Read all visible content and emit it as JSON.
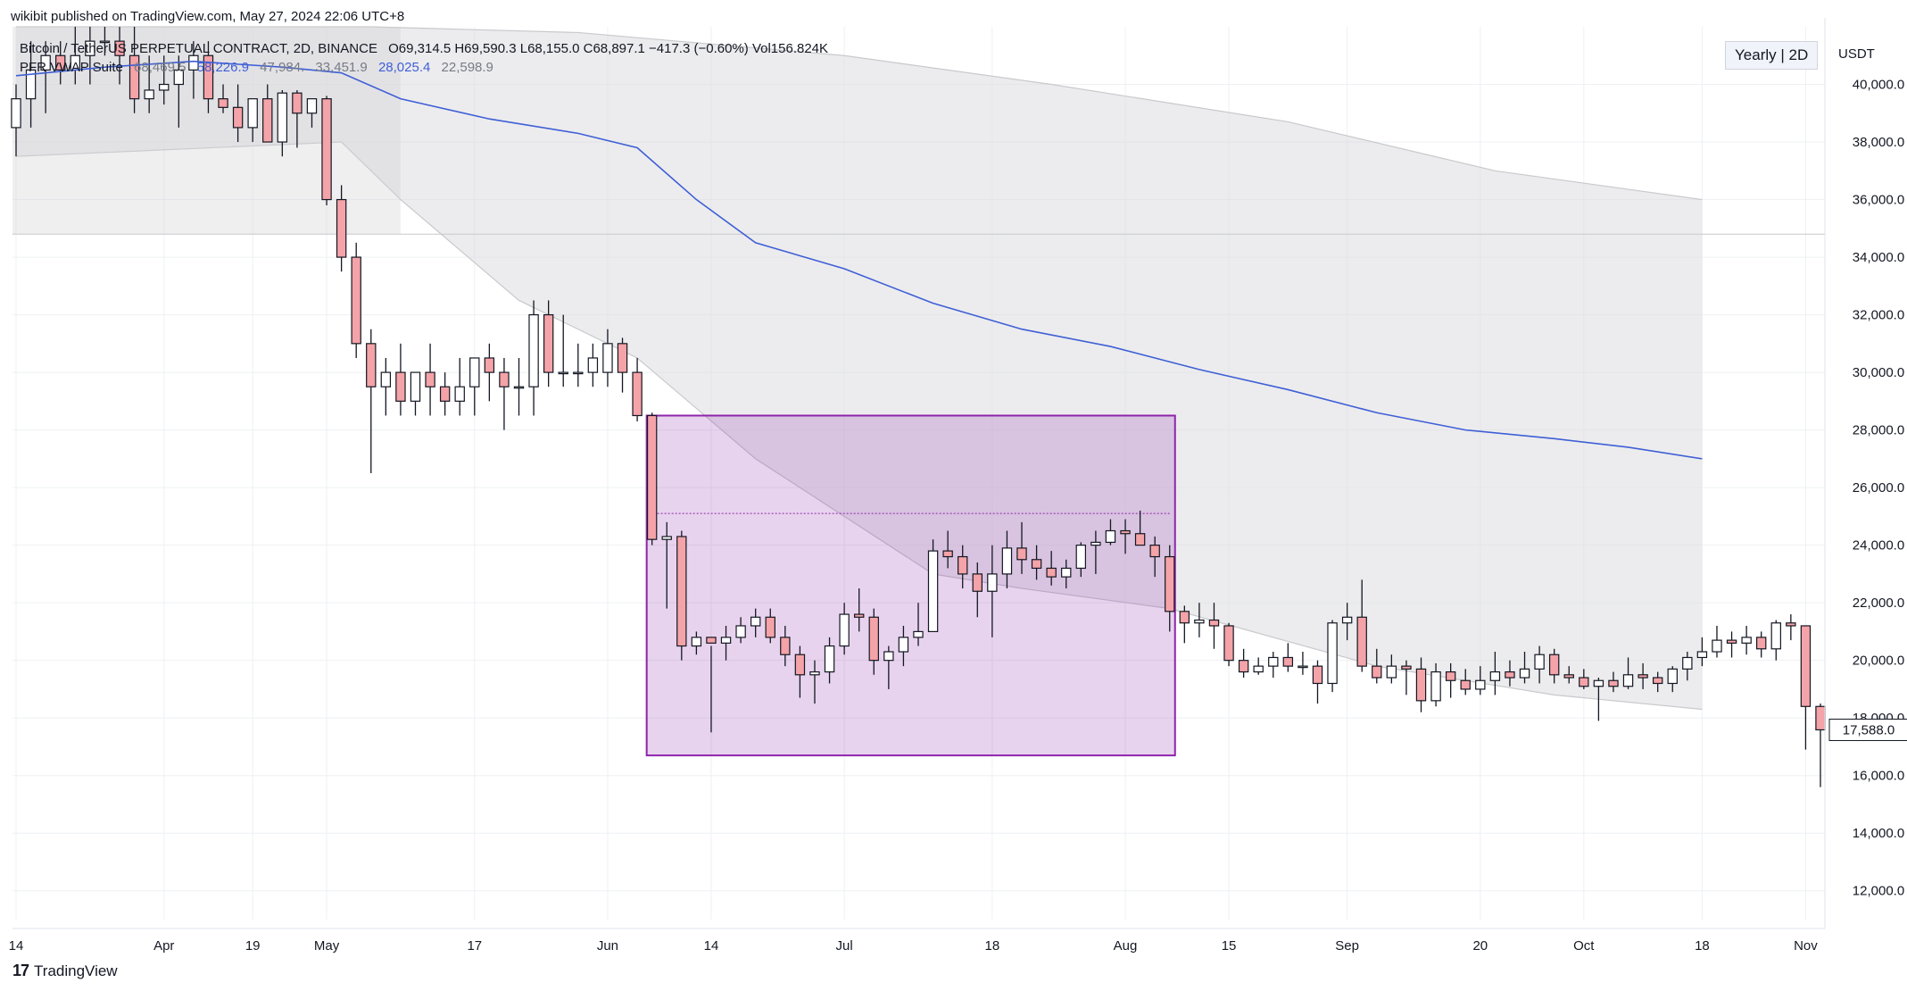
{
  "header": {
    "published": "wikibit published on TradingView.com, May 27, 2024 22:06 UTC+8",
    "symbol": "Bitcoin / TetherUS PERPETUAL CONTRACT, 2D, BINANCE",
    "ohlc": "O69,314.5  H69,590.3  L68,155.0  C68,897.1  −417.3 (−0.60%)  Vol156.824K",
    "indicator_name": "PFR VWAP Suite",
    "indicator_values": [
      "68,469.5",
      "58,226.9",
      "47,984.",
      "33,451.9",
      "28,025.4",
      "22,598.9"
    ]
  },
  "controls": {
    "range_button": "Yearly | 2D",
    "currency": "USDT"
  },
  "watermark": {
    "logo": "17",
    "text": "TradingView"
  },
  "colors": {
    "up": "#ffffff",
    "down": "#f4a3a8",
    "vwap": "#3f5fd6",
    "box": "#8e24aa",
    "band": "#d8d9dc"
  },
  "chart_data": {
    "type": "candlestick",
    "y_axis": {
      "min": 11000,
      "max": 42000,
      "ticks": [
        "12,000.0",
        "14,000.0",
        "16,000.0",
        "18,000.0",
        "20,000.0",
        "22,000.0",
        "24,000.0",
        "26,000.0",
        "28,000.0",
        "30,000.0",
        "32,000.0",
        "34,000.0",
        "36,000.0",
        "38,000.0",
        "40,000.0"
      ]
    },
    "x_labels": [
      "14",
      "Apr",
      "19",
      "May",
      "17",
      "Jun",
      "14",
      "Jul",
      "18",
      "Aug",
      "15",
      "Sep",
      "20",
      "Oct",
      "18",
      "Nov"
    ],
    "last_price_label": "17,588.0",
    "candles": [
      [
        38500,
        40000,
        37500,
        39500
      ],
      [
        39500,
        41500,
        38500,
        40500
      ],
      [
        40500,
        41500,
        39000,
        41000
      ],
      [
        41000,
        41500,
        40000,
        40500
      ],
      [
        40500,
        42000,
        40000,
        41000
      ],
      [
        41000,
        42000,
        40000,
        41500
      ],
      [
        41500,
        42000,
        41000,
        41500
      ],
      [
        41500,
        42000,
        40000,
        41000
      ],
      [
        41000,
        42000,
        39000,
        39500
      ],
      [
        39500,
        41000,
        39000,
        39800
      ],
      [
        39800,
        41000,
        39300,
        40000
      ],
      [
        40000,
        41000,
        38500,
        40500
      ],
      [
        40500,
        41500,
        39500,
        41000
      ],
      [
        41000,
        41500,
        39000,
        39500
      ],
      [
        39500,
        40000,
        39000,
        39200
      ],
      [
        39200,
        40000,
        38000,
        38500
      ],
      [
        38500,
        39500,
        38000,
        39500
      ],
      [
        39500,
        40000,
        38000,
        38000
      ],
      [
        38000,
        39800,
        37500,
        39700
      ],
      [
        39700,
        39800,
        37800,
        39000
      ],
      [
        39000,
        39500,
        38500,
        39500
      ],
      [
        39500,
        39600,
        35800,
        36000
      ],
      [
        36000,
        36500,
        33500,
        34000
      ],
      [
        34000,
        34500,
        30500,
        31000
      ],
      [
        31000,
        31500,
        26500,
        29500
      ],
      [
        29500,
        30500,
        28500,
        30000
      ],
      [
        30000,
        31000,
        28500,
        29000
      ],
      [
        29000,
        30000,
        28500,
        30000
      ],
      [
        30000,
        31000,
        28500,
        29500
      ],
      [
        29500,
        30000,
        28500,
        29000
      ],
      [
        29000,
        30500,
        28500,
        29500
      ],
      [
        29500,
        30500,
        28500,
        30500
      ],
      [
        30500,
        31000,
        29000,
        30000
      ],
      [
        30000,
        30500,
        28000,
        29500
      ],
      [
        29500,
        30500,
        28500,
        29500
      ],
      [
        29500,
        32500,
        28500,
        32000
      ],
      [
        32000,
        32500,
        29500,
        30000
      ],
      [
        30000,
        32000,
        29500,
        30000
      ],
      [
        30000,
        31000,
        29500,
        30000
      ],
      [
        30000,
        31000,
        29500,
        30500
      ],
      [
        30000,
        31500,
        29500,
        31000
      ],
      [
        31000,
        31200,
        29300,
        30000
      ],
      [
        30000,
        30500,
        28300,
        28500
      ],
      [
        28500,
        28600,
        24000,
        24200
      ],
      [
        24200,
        24800,
        21800,
        24300
      ],
      [
        24300,
        24500,
        20000,
        20500
      ],
      [
        20500,
        21000,
        20200,
        20800
      ],
      [
        20800,
        20500,
        17500,
        20600
      ],
      [
        20600,
        21200,
        20000,
        20800
      ],
      [
        20800,
        21500,
        20600,
        21200
      ],
      [
        21200,
        21800,
        20800,
        21500
      ],
      [
        21500,
        21800,
        20600,
        20800
      ],
      [
        20800,
        21200,
        19800,
        20200
      ],
      [
        20200,
        20500,
        18700,
        19500
      ],
      [
        19500,
        20000,
        18500,
        19600
      ],
      [
        19600,
        20800,
        19200,
        20500
      ],
      [
        20500,
        22000,
        20200,
        21600
      ],
      [
        21600,
        22500,
        21000,
        21500
      ],
      [
        21500,
        21800,
        19500,
        20000
      ],
      [
        20000,
        20500,
        19000,
        20300
      ],
      [
        20300,
        21200,
        19800,
        20800
      ],
      [
        20800,
        22000,
        20500,
        21000
      ],
      [
        21000,
        24200,
        21000,
        23800
      ],
      [
        23800,
        24500,
        23200,
        23600
      ],
      [
        23600,
        24000,
        22500,
        23000
      ],
      [
        23000,
        23400,
        21500,
        22400
      ],
      [
        22400,
        24000,
        20800,
        23000
      ],
      [
        23000,
        24500,
        22500,
        23900
      ],
      [
        23900,
        24800,
        23000,
        23500
      ],
      [
        23500,
        24000,
        22800,
        23200
      ],
      [
        23200,
        23800,
        22600,
        22900
      ],
      [
        22900,
        23500,
        22500,
        23200
      ],
      [
        23200,
        24100,
        22900,
        24000
      ],
      [
        24000,
        24500,
        23000,
        24100
      ],
      [
        24100,
        24900,
        24000,
        24500
      ],
      [
        24500,
        24900,
        23700,
        24400
      ],
      [
        24400,
        25200,
        24000,
        24000
      ],
      [
        24000,
        24300,
        22900,
        23600
      ],
      [
        23600,
        24000,
        21000,
        21700
      ],
      [
        21700,
        21900,
        20600,
        21300
      ],
      [
        21300,
        22000,
        20800,
        21400
      ],
      [
        21400,
        22000,
        20400,
        21200
      ],
      [
        21200,
        21300,
        19800,
        20000
      ],
      [
        20000,
        20400,
        19400,
        19600
      ],
      [
        19600,
        20100,
        19500,
        19800
      ],
      [
        19800,
        20300,
        19400,
        20100
      ],
      [
        20100,
        20600,
        19600,
        19800
      ],
      [
        19800,
        20300,
        19500,
        19800
      ],
      [
        19800,
        20000,
        18500,
        19200
      ],
      [
        19200,
        21400,
        18900,
        21300
      ],
      [
        21300,
        22000,
        20700,
        21500
      ],
      [
        21500,
        22800,
        19600,
        19800
      ],
      [
        19800,
        20400,
        19200,
        19400
      ],
      [
        19400,
        20200,
        19200,
        19800
      ],
      [
        19800,
        20000,
        18800,
        19700
      ],
      [
        19700,
        20100,
        18200,
        18600
      ],
      [
        18600,
        19900,
        18400,
        19600
      ],
      [
        19600,
        19900,
        18700,
        19300
      ],
      [
        19300,
        19700,
        18800,
        19000
      ],
      [
        19000,
        19800,
        18800,
        19300
      ],
      [
        19300,
        20300,
        18800,
        19600
      ],
      [
        19600,
        20000,
        19100,
        19400
      ],
      [
        19400,
        20300,
        19200,
        19700
      ],
      [
        19700,
        20500,
        19200,
        20200
      ],
      [
        20200,
        20400,
        19200,
        19500
      ],
      [
        19500,
        19800,
        19200,
        19400
      ],
      [
        19400,
        19700,
        19000,
        19100
      ],
      [
        19100,
        19400,
        17900,
        19300
      ],
      [
        19300,
        19600,
        18900,
        19100
      ],
      [
        19100,
        20100,
        19000,
        19500
      ],
      [
        19500,
        19900,
        19000,
        19400
      ],
      [
        19400,
        19600,
        18900,
        19200
      ],
      [
        19200,
        19800,
        18900,
        19700
      ],
      [
        19700,
        20300,
        19300,
        20100
      ],
      [
        20100,
        20800,
        19800,
        20300
      ],
      [
        20300,
        21200,
        20100,
        20700
      ],
      [
        20700,
        21000,
        20100,
        20600
      ],
      [
        20600,
        21200,
        20200,
        20800
      ],
      [
        20800,
        21000,
        20100,
        20400
      ],
      [
        20400,
        21400,
        20000,
        21300
      ],
      [
        21300,
        21600,
        20700,
        21200
      ],
      [
        21200,
        20900,
        16900,
        18400
      ],
      [
        18400,
        18500,
        15600,
        17588
      ]
    ],
    "vwap": [
      [
        0,
        40300
      ],
      [
        6,
        40600
      ],
      [
        12,
        40800
      ],
      [
        18,
        40600
      ],
      [
        22,
        40400
      ],
      [
        26,
        39500
      ],
      [
        32,
        38800
      ],
      [
        38,
        38300
      ],
      [
        42,
        37800
      ],
      [
        46,
        36000
      ],
      [
        50,
        34500
      ],
      [
        56,
        33600
      ],
      [
        62,
        32400
      ],
      [
        68,
        31500
      ],
      [
        74,
        30900
      ],
      [
        80,
        30100
      ],
      [
        86,
        29400
      ],
      [
        92,
        28600
      ],
      [
        98,
        28000
      ],
      [
        104,
        27700
      ],
      [
        109,
        27400
      ],
      [
        114,
        27000
      ]
    ],
    "upper_band": [
      [
        0,
        42000
      ],
      [
        24,
        42000
      ],
      [
        38,
        41800
      ],
      [
        56,
        41000
      ],
      [
        70,
        40000
      ],
      [
        86,
        38700
      ],
      [
        100,
        37000
      ],
      [
        114,
        36000
      ]
    ],
    "lower_band": [
      [
        0,
        37500
      ],
      [
        22,
        38000
      ],
      [
        26,
        36000
      ],
      [
        34,
        32500
      ],
      [
        42,
        30500
      ],
      [
        50,
        27000
      ],
      [
        56,
        25000
      ],
      [
        62,
        23000
      ],
      [
        68,
        22500
      ],
      [
        78,
        21800
      ],
      [
        92,
        19800
      ],
      [
        104,
        18800
      ],
      [
        114,
        18300
      ]
    ],
    "box": {
      "start": 43,
      "end": 78,
      "top": 28500,
      "bottom": 16700,
      "midline": 25100
    }
  }
}
